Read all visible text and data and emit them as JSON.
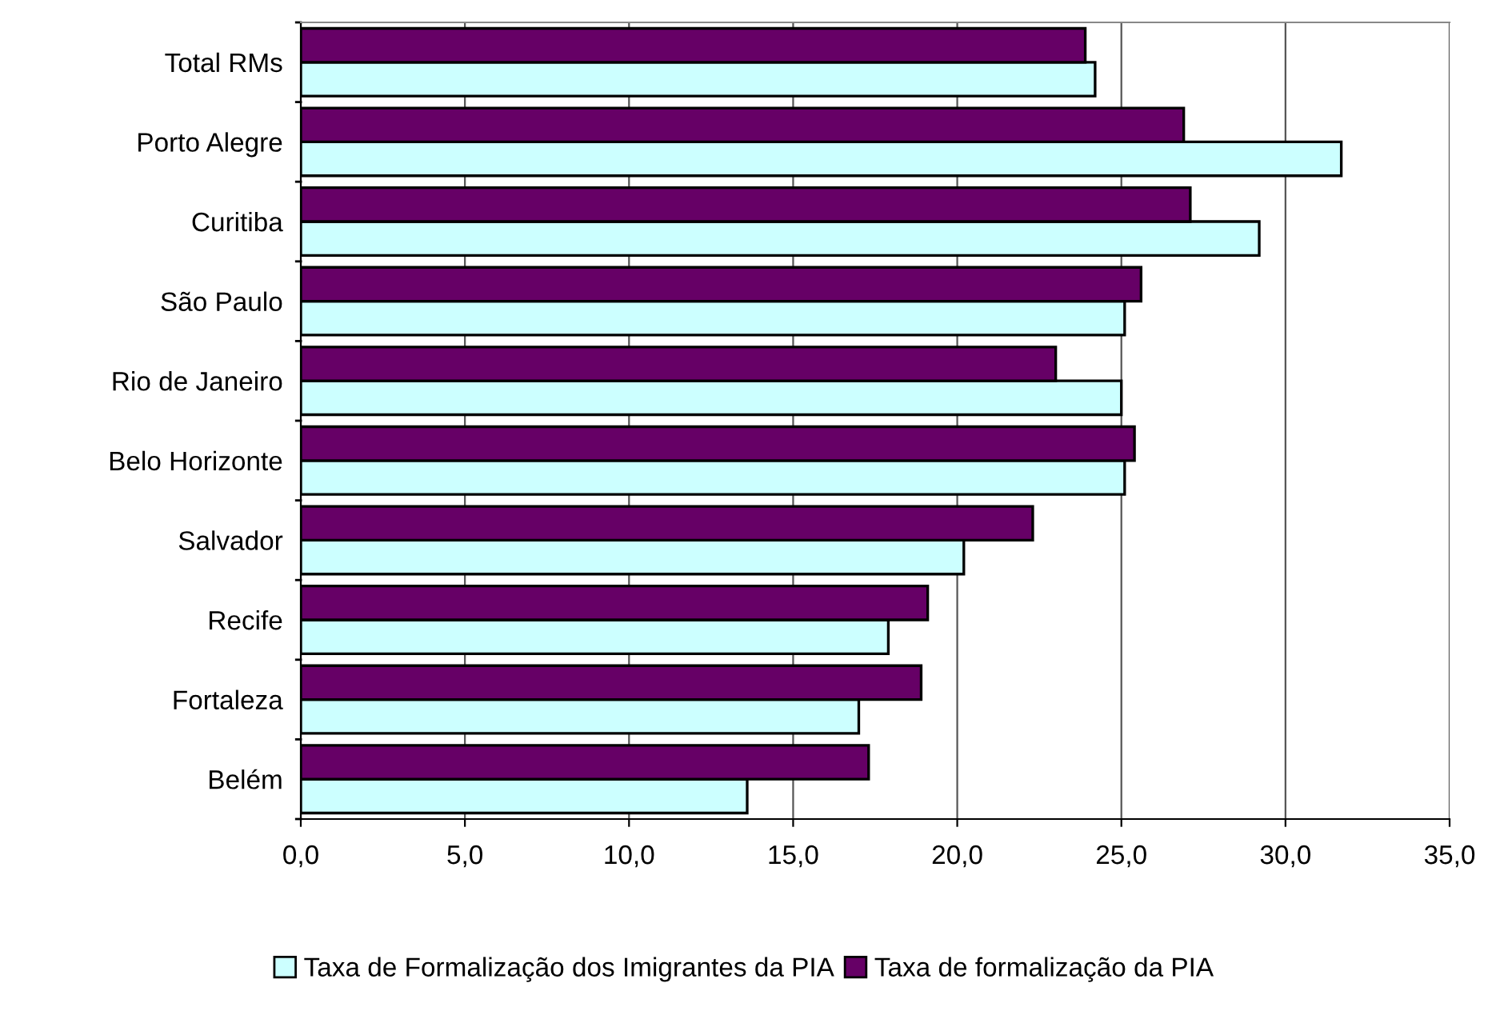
{
  "chart_data": {
    "type": "bar",
    "orientation": "horizontal",
    "categories": [
      "Total RMs",
      "Porto Alegre",
      "Curitiba",
      "São Paulo",
      "Rio de Janeiro",
      "Belo Horizonte",
      "Salvador",
      "Recife",
      "Fortaleza",
      "Belém"
    ],
    "series": [
      {
        "name": "Taxa de Formalização dos Imigrantes da PIA",
        "color": "#ccffff",
        "values": [
          24.2,
          31.7,
          29.2,
          25.1,
          25.0,
          25.1,
          20.2,
          17.9,
          17.0,
          13.6
        ]
      },
      {
        "name": "Taxa de formalização da PIA",
        "color": "#660066",
        "values": [
          23.9,
          26.9,
          27.1,
          25.6,
          23.0,
          25.4,
          22.3,
          19.1,
          18.9,
          17.3
        ]
      }
    ],
    "xlim": [
      0,
      35
    ],
    "xticks": [
      {
        "value": 0,
        "label": "0,0"
      },
      {
        "value": 5,
        "label": "5,0"
      },
      {
        "value": 10,
        "label": "10,0"
      },
      {
        "value": 15,
        "label": "15,0"
      },
      {
        "value": 20,
        "label": "20,0"
      },
      {
        "value": 25,
        "label": "25,0"
      },
      {
        "value": 30,
        "label": "30,0"
      },
      {
        "value": 35,
        "label": "35,0"
      }
    ],
    "grid": "x",
    "legend": "bottom"
  }
}
